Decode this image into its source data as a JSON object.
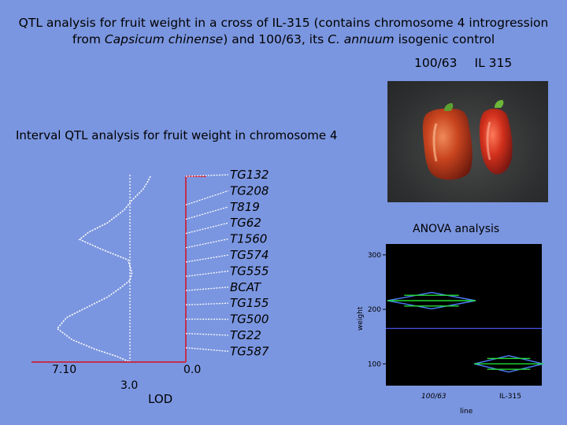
{
  "title": {
    "line1": "QTL analysis for fruit weight in a cross of IL-315 (contains chromosome 4 introgression",
    "line2_part1": "from ",
    "line2_species": "Capsicum chinense",
    "line2_part2": ") and 100/63, its ",
    "line2_species2": "C. annuum",
    "line2_part3": " isogenic control"
  },
  "photo": {
    "label_left": "100/63",
    "label_right": "IL 315"
  },
  "qtl": {
    "subtitle": "Interval QTL analysis for fruit weight in chromosome 4",
    "markers": [
      "TG132",
      "TG208",
      "T819",
      "TG62",
      "T1560",
      "TG574",
      "TG555",
      "BCAT",
      "TG155",
      "TG500",
      "TG22",
      "TG587"
    ],
    "lod_max_label": "7.10",
    "threshold_label": "3.0",
    "zero_label": "0.0",
    "axis_label": "LOD",
    "lod_max": 7.1,
    "threshold": 3.0,
    "lod_profile": [
      [
        0.0,
        1.9
      ],
      [
        0.03,
        2.05
      ],
      [
        0.07,
        2.3
      ],
      [
        0.1,
        2.6
      ],
      [
        0.13,
        2.9
      ],
      [
        0.18,
        3.3
      ],
      [
        0.25,
        4.2
      ],
      [
        0.3,
        5.2
      ],
      [
        0.34,
        5.7
      ],
      [
        0.39,
        4.6
      ],
      [
        0.45,
        3.1
      ],
      [
        0.52,
        2.9
      ],
      [
        0.56,
        3.0
      ],
      [
        0.6,
        3.5
      ],
      [
        0.65,
        4.2
      ],
      [
        0.7,
        5.2
      ],
      [
        0.76,
        6.4
      ],
      [
        0.82,
        6.9
      ],
      [
        0.88,
        6.1
      ],
      [
        0.93,
        4.9
      ],
      [
        0.97,
        3.7
      ],
      [
        1.0,
        3.0
      ]
    ]
  },
  "anova": {
    "title": "ANOVA analysis",
    "ylabel": "weight",
    "xlabel": "line",
    "ylim": [
      60,
      320
    ],
    "yticks": [
      100,
      200,
      300
    ],
    "grand_mean": 165,
    "groups": [
      {
        "name": "100/63",
        "mean": 216,
        "ci_low": 201,
        "ci_high": 231
      },
      {
        "name": "IL-315",
        "mean": 100,
        "ci_low": 85,
        "ci_high": 115
      }
    ]
  },
  "colors": {
    "background": "#7b96e0",
    "chromosome": "#c0304a",
    "lod_curve": "#ffffff",
    "anova_bg": "#000000",
    "diamond": "#4d7fff",
    "mean_line": "#22dd33",
    "grand_mean": "#4d5bff"
  }
}
